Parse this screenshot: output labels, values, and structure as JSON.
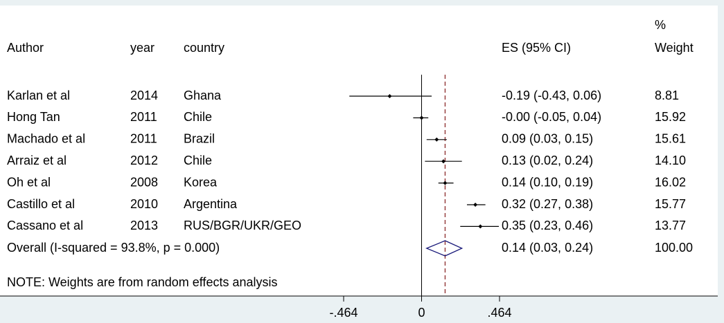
{
  "chart_data": {
    "type": "forest",
    "headers": {
      "author": "Author",
      "year": "year",
      "country": "country",
      "es": "ES (95% CI)",
      "weight_top": "%",
      "weight": "Weight"
    },
    "authors": [
      "Karlan et al",
      "Hong Tan",
      "Machado et al",
      "Arraiz et al",
      "Oh et al",
      "Castillo et al",
      "Cassano et al"
    ],
    "years": [
      "2014",
      "2011",
      "2011",
      "2012",
      "2008",
      "2010",
      "2013"
    ],
    "countries": [
      "Ghana",
      "Chile",
      "Brazil",
      "Chile",
      "Korea",
      "Argentina",
      "RUS/BGR/UKR/GEO"
    ],
    "values": [
      -0.19,
      -0.0,
      0.09,
      0.13,
      0.14,
      0.32,
      0.35
    ],
    "lower": [
      -0.43,
      -0.05,
      0.03,
      0.02,
      0.1,
      0.27,
      0.23
    ],
    "upper": [
      0.06,
      0.04,
      0.15,
      0.24,
      0.19,
      0.38,
      0.46
    ],
    "value_labels": [
      "-0.19 (-0.43, 0.06)",
      "-0.00 (-0.05, 0.04)",
      "0.09 (0.03, 0.15)",
      "0.13 (0.02, 0.24)",
      "0.14 (0.10, 0.19)",
      "0.32 (0.27, 0.38)",
      "0.35 (0.23, 0.46)"
    ],
    "weights": [
      8.81,
      15.92,
      15.61,
      14.1,
      16.02,
      15.77,
      13.77
    ],
    "weight_labels": [
      "8.81",
      "15.92",
      "15.61",
      "14.10",
      "16.02",
      "15.77",
      "13.77"
    ],
    "overall": {
      "label": "Overall  (I-squared = 93.8%, p = 0.000)",
      "value": 0.14,
      "lower": 0.03,
      "upper": 0.24,
      "value_label": "0.14 (0.03, 0.24)",
      "weight": 100,
      "weight_label": "100.00"
    },
    "note": "NOTE: Weights are from random effects analysis",
    "xlim": [
      -0.464,
      0.464
    ],
    "xticks": [
      {
        "value": -0.464,
        "label": "-.464"
      },
      0,
      {
        "value": 0.464,
        "label": ".464"
      }
    ],
    "color": "#000000",
    "overall_color": "#1a1a7a",
    "ref_color": "#8b2a2a"
  }
}
